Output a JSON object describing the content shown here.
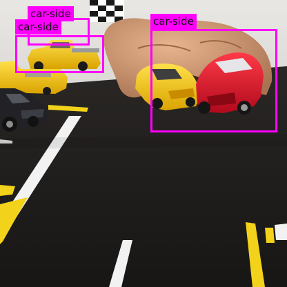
{
  "image": {
    "description_free": true
  },
  "colors": {
    "annotation": "#ff00ff",
    "label_text": "#111111",
    "road": "#1f1d1c",
    "lane_yellow": "#f2d21a",
    "lane_white": "#f2f2f2",
    "car_yellow": "#f5c400",
    "car_red": "#e0102a",
    "car_black": "#222226"
  },
  "detections": [
    {
      "label": "car-side"
    },
    {
      "label": "car-side"
    },
    {
      "label": "car-side"
    }
  ]
}
